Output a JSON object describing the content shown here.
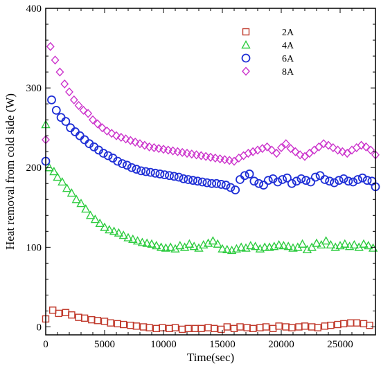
{
  "chart_data": {
    "type": "scatter",
    "title": "",
    "xlabel": "Time(sec)",
    "ylabel": "Heat removal from cold side (W)",
    "xlim": [
      0,
      28000
    ],
    "ylim": [
      -10,
      400
    ],
    "xticks": [
      0,
      5000,
      10000,
      15000,
      20000,
      25000
    ],
    "yticks": [
      0,
      100,
      200,
      300,
      400
    ],
    "xtick_labels": [
      "0",
      "5000",
      "10000",
      "15000",
      "20000",
      "25000"
    ],
    "ytick_labels": [
      "0",
      "100",
      "200",
      "300",
      "400"
    ],
    "grid": false,
    "legend_position": "top-right",
    "series": [
      {
        "name": "2A",
        "marker": "square",
        "color": "#c0392b",
        "x": [
          0,
          600,
          1100,
          1700,
          2200,
          2800,
          3300,
          3900,
          4400,
          5000,
          5500,
          6100,
          6600,
          7200,
          7700,
          8300,
          8800,
          9400,
          9900,
          10500,
          11000,
          11600,
          12100,
          12700,
          13200,
          13800,
          14300,
          14900,
          15400,
          16000,
          16500,
          17100,
          17600,
          18200,
          18700,
          19300,
          19800,
          20400,
          20900,
          21500,
          22000,
          22600,
          23100,
          23700,
          24200,
          24800,
          25300,
          25900,
          26400,
          27000,
          27500
        ],
        "y": [
          10,
          21,
          17,
          18,
          15,
          12,
          11,
          9,
          8,
          7,
          5,
          4,
          3,
          2,
          1,
          0,
          -1,
          -2,
          -1,
          -2,
          -1,
          -3,
          -2,
          -2,
          -2,
          -1,
          -2,
          -3,
          0,
          -2,
          0,
          -1,
          -2,
          -1,
          0,
          -2,
          1,
          0,
          -1,
          0,
          1,
          0,
          -1,
          1,
          2,
          3,
          4,
          5,
          5,
          4,
          2
        ]
      },
      {
        "name": "4A",
        "marker": "triangle",
        "color": "#2ecc40",
        "x": [
          0,
          300,
          700,
          1000,
          1400,
          1800,
          2200,
          2600,
          3000,
          3400,
          3800,
          4200,
          4600,
          5000,
          5400,
          5800,
          6200,
          6600,
          7000,
          7400,
          7800,
          8200,
          8600,
          9000,
          9400,
          9800,
          10200,
          10600,
          11000,
          11400,
          11800,
          12200,
          12600,
          13000,
          13400,
          13800,
          14200,
          14600,
          15000,
          15400,
          15800,
          16200,
          16600,
          17000,
          17400,
          17800,
          18200,
          18600,
          19000,
          19400,
          19800,
          20200,
          20600,
          21000,
          21400,
          21800,
          22200,
          22600,
          23000,
          23400,
          23800,
          24200,
          24600,
          25000,
          25400,
          25800,
          26200,
          26600,
          27000,
          27400,
          27800
        ],
        "y": [
          254,
          200,
          195,
          188,
          182,
          174,
          168,
          160,
          155,
          148,
          140,
          135,
          130,
          125,
          122,
          120,
          118,
          115,
          112,
          110,
          108,
          106,
          105,
          104,
          102,
          100,
          99,
          100,
          98,
          102,
          100,
          104,
          101,
          99,
          103,
          105,
          108,
          104,
          98,
          97,
          96,
          98,
          100,
          99,
          102,
          101,
          98,
          100,
          100,
          101,
          103,
          102,
          101,
          99,
          100,
          104,
          97,
          100,
          105,
          103,
          108,
          103,
          100,
          102,
          104,
          101,
          103,
          100,
          104,
          102,
          99
        ]
      },
      {
        "name": "6A",
        "marker": "circle",
        "color": "#1f2fd6",
        "x": [
          0,
          500,
          900,
          1300,
          1700,
          2100,
          2500,
          2900,
          3300,
          3700,
          4100,
          4500,
          4900,
          5300,
          5700,
          6100,
          6500,
          6900,
          7300,
          7700,
          8100,
          8500,
          8900,
          9300,
          9700,
          10100,
          10500,
          10900,
          11300,
          11700,
          12100,
          12500,
          12900,
          13300,
          13700,
          14100,
          14500,
          14900,
          15300,
          15700,
          16100,
          16500,
          16900,
          17300,
          17700,
          18100,
          18500,
          18900,
          19300,
          19700,
          20100,
          20500,
          20900,
          21300,
          21700,
          22100,
          22500,
          22900,
          23300,
          23700,
          24100,
          24500,
          24900,
          25300,
          25700,
          26100,
          26500,
          26900,
          27300,
          27700,
          28000
        ],
        "y": [
          208,
          285,
          272,
          263,
          258,
          250,
          245,
          240,
          235,
          230,
          226,
          222,
          218,
          215,
          212,
          208,
          205,
          203,
          200,
          198,
          196,
          195,
          194,
          193,
          192,
          191,
          190,
          189,
          188,
          186,
          185,
          184,
          183,
          182,
          181,
          180,
          180,
          179,
          178,
          175,
          172,
          185,
          190,
          192,
          183,
          180,
          178,
          184,
          186,
          182,
          185,
          187,
          180,
          183,
          186,
          184,
          182,
          188,
          190,
          185,
          183,
          181,
          184,
          186,
          183,
          182,
          185,
          187,
          184,
          183,
          176
        ]
      },
      {
        "name": "8A",
        "marker": "diamond",
        "color": "#cc33cc",
        "x": [
          0,
          400,
          800,
          1200,
          1600,
          2000,
          2400,
          2800,
          3200,
          3600,
          4000,
          4400,
          4800,
          5200,
          5600,
          6000,
          6400,
          6800,
          7200,
          7600,
          8000,
          8400,
          8800,
          9200,
          9600,
          10000,
          10400,
          10800,
          11200,
          11600,
          12000,
          12400,
          12800,
          13200,
          13600,
          14000,
          14400,
          14800,
          15200,
          15600,
          16000,
          16400,
          16800,
          17200,
          17600,
          18000,
          18400,
          18800,
          19200,
          19600,
          20000,
          20400,
          20800,
          21200,
          21600,
          22000,
          22400,
          22800,
          23200,
          23600,
          24000,
          24400,
          24800,
          25200,
          25600,
          26000,
          26400,
          26800,
          27200,
          27600,
          28000
        ],
        "y": [
          235,
          352,
          335,
          320,
          305,
          295,
          285,
          278,
          272,
          268,
          260,
          255,
          250,
          246,
          243,
          240,
          238,
          236,
          234,
          232,
          230,
          228,
          226,
          225,
          224,
          223,
          222,
          221,
          220,
          219,
          218,
          217,
          216,
          215,
          214,
          213,
          212,
          211,
          210,
          209,
          208,
          212,
          215,
          218,
          220,
          222,
          224,
          226,
          222,
          218,
          225,
          230,
          224,
          220,
          216,
          214,
          218,
          222,
          226,
          230,
          228,
          225,
          222,
          220,
          218,
          222,
          225,
          228,
          226,
          222,
          216
        ]
      }
    ]
  }
}
